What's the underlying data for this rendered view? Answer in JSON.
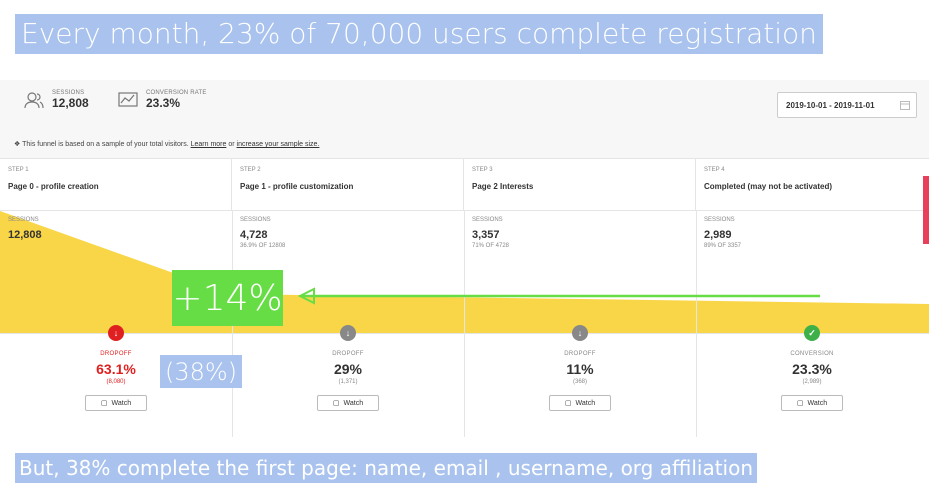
{
  "headline": "Every month, 23% of 70,000 users complete registration",
  "footer": "But, 38% complete the first page: name, email , username, org affiliation",
  "overlay_increase": "+14%",
  "overlay_percent": "(38%)",
  "stats": {
    "sessions_label": "SESSIONS",
    "sessions_value": "12,808",
    "conversion_label": "CONVERSION RATE",
    "conversion_value": "23.3%"
  },
  "date_range": "2019-10-01 - 2019-11-01",
  "notice": {
    "prefix": "This funnel is based on a sample of your total visitors.",
    "link1": "Learn more",
    "middle": "or",
    "link2": "increase your sample size."
  },
  "steps": [
    {
      "step": "STEP 1",
      "name": "Page 0 - profile creation",
      "sessions_label": "SESSIONS",
      "sessions": "12,808",
      "sub": "",
      "metric_label": "DROPOFF",
      "metric": "63.1%",
      "count": "(8,080)",
      "watch": "Watch"
    },
    {
      "step": "STEP 2",
      "name": "Page 1 - profile customization",
      "sessions_label": "SESSIONS",
      "sessions": "4,728",
      "sub": "36.9% OF 12808",
      "metric_label": "DROPOFF",
      "metric": "29%",
      "count": "(1,371)",
      "watch": "Watch"
    },
    {
      "step": "STEP 3",
      "name": "Page 2 Interests",
      "sessions_label": "SESSIONS",
      "sessions": "3,357",
      "sub": "71% OF 4728",
      "metric_label": "DROPOFF",
      "metric": "11%",
      "count": "(368)",
      "watch": "Watch"
    },
    {
      "step": "STEP 4",
      "name": "Completed (may not be activated)",
      "sessions_label": "SESSIONS",
      "sessions": "2,989",
      "sub": "89% OF 3357",
      "metric_label": "CONVERSION",
      "metric": "23.3%",
      "count": "(2,989)",
      "watch": "Watch"
    }
  ],
  "colors": {
    "funnel": "#f9d648",
    "dropoff_red": "#e02020",
    "conversion_green": "#3db04a",
    "neutral_gray": "#888888",
    "arrow_green": "#66dd44",
    "banner_blue": "#a9c3ee"
  }
}
